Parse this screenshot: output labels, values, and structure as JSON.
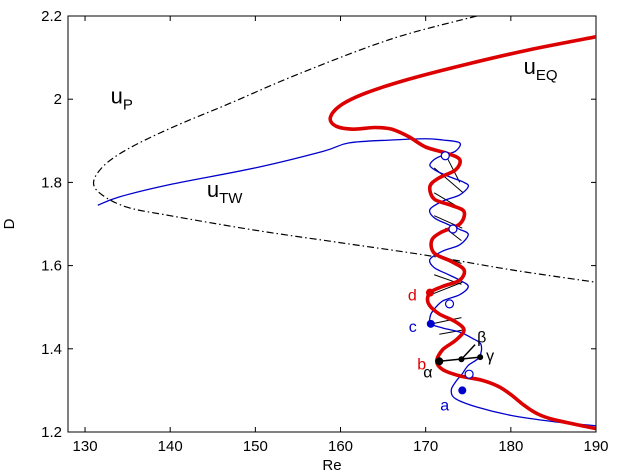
{
  "chart_data": {
    "type": "line",
    "xlabel": "Re",
    "ylabel": "D",
    "xlim": [
      128,
      190
    ],
    "ylim": [
      1.2,
      2.2
    ],
    "x_ticks": [
      130,
      140,
      150,
      160,
      170,
      180,
      190
    ],
    "x_tick_labels": [
      "130",
      "140",
      "150",
      "160",
      "170",
      "180",
      "190"
    ],
    "y_ticks": [
      1.2,
      1.4,
      1.6,
      1.8,
      2.0,
      2.2
    ],
    "y_tick_labels": [
      "1.2",
      "1.4",
      "1.6",
      "1.8",
      "2",
      "2.2"
    ],
    "grid": false,
    "series": [
      {
        "name": "u_P",
        "style": "dash-dot",
        "color": "#000000",
        "points": [
          [
            176,
            2.2
          ],
          [
            166,
            2.145
          ],
          [
            155,
            2.06
          ],
          [
            147,
            1.99
          ],
          [
            140,
            1.93
          ],
          [
            135,
            1.88
          ],
          [
            132.2,
            1.84
          ],
          [
            131,
            1.8
          ],
          [
            132,
            1.77
          ],
          [
            135,
            1.74
          ],
          [
            140,
            1.72
          ],
          [
            150,
            1.685
          ],
          [
            160,
            1.655
          ],
          [
            170,
            1.625
          ],
          [
            180,
            1.59
          ],
          [
            190,
            1.56
          ]
        ]
      },
      {
        "name": "u_TW",
        "style": "solid",
        "color": "#0000cc",
        "points": [
          [
            131.5,
            1.745
          ],
          [
            134,
            1.765
          ],
          [
            140,
            1.795
          ],
          [
            150,
            1.835
          ],
          [
            158,
            1.875
          ],
          [
            161,
            1.895
          ],
          [
            166,
            1.902
          ],
          [
            170,
            1.905
          ],
          [
            172,
            1.902
          ],
          [
            174,
            1.895
          ],
          [
            173.5,
            1.875
          ],
          [
            172,
            1.865
          ],
          [
            171,
            1.855
          ],
          [
            170.5,
            1.84
          ],
          [
            171.5,
            1.825
          ],
          [
            173,
            1.812
          ],
          [
            174.5,
            1.8
          ],
          [
            175,
            1.79
          ],
          [
            174,
            1.77
          ],
          [
            172,
            1.755
          ],
          [
            170.5,
            1.735
          ],
          [
            171,
            1.715
          ],
          [
            172.5,
            1.7
          ],
          [
            174,
            1.687
          ],
          [
            175,
            1.675
          ],
          [
            174,
            1.65
          ],
          [
            172,
            1.635
          ],
          [
            170.5,
            1.615
          ],
          [
            171,
            1.595
          ],
          [
            172.5,
            1.58
          ],
          [
            174,
            1.565
          ],
          [
            175,
            1.55
          ],
          [
            174,
            1.53
          ],
          [
            172,
            1.515
          ],
          [
            170.8,
            1.49
          ],
          [
            170.5,
            1.475
          ],
          [
            170.6,
            1.46
          ],
          [
            172,
            1.45
          ],
          [
            174,
            1.44
          ],
          [
            175.5,
            1.425
          ],
          [
            176.5,
            1.41
          ],
          [
            176.3,
            1.38
          ],
          [
            175,
            1.36
          ],
          [
            174.3,
            1.34
          ],
          [
            173.5,
            1.32
          ],
          [
            173,
            1.3
          ],
          [
            173.5,
            1.28
          ],
          [
            176,
            1.26
          ],
          [
            180,
            1.24
          ],
          [
            185,
            1.225
          ],
          [
            190,
            1.215
          ]
        ]
      },
      {
        "name": "u_EQ",
        "style": "solid-thick",
        "color": "#dd0000",
        "points": [
          [
            190,
            2.15
          ],
          [
            182,
            2.118
          ],
          [
            175,
            2.085
          ],
          [
            168,
            2.048
          ],
          [
            163,
            2.015
          ],
          [
            160,
            1.985
          ],
          [
            158.8,
            1.955
          ],
          [
            159.5,
            1.935
          ],
          [
            161.5,
            1.928
          ],
          [
            164,
            1.932
          ],
          [
            166,
            1.928
          ],
          [
            168,
            1.91
          ],
          [
            170,
            1.885
          ],
          [
            172.5,
            1.87
          ],
          [
            174,
            1.855
          ],
          [
            173.5,
            1.83
          ],
          [
            171.5,
            1.81
          ],
          [
            170.5,
            1.79
          ],
          [
            171,
            1.76
          ],
          [
            173,
            1.745
          ],
          [
            174.5,
            1.73
          ],
          [
            174,
            1.7
          ],
          [
            171.8,
            1.68
          ],
          [
            170.7,
            1.66
          ],
          [
            171,
            1.63
          ],
          [
            173,
            1.61
          ],
          [
            174.5,
            1.59
          ],
          [
            174,
            1.565
          ],
          [
            172,
            1.55
          ],
          [
            170.5,
            1.535
          ],
          [
            170.3,
            1.51
          ],
          [
            171.5,
            1.485
          ],
          [
            173.5,
            1.465
          ],
          [
            174.5,
            1.445
          ],
          [
            173.5,
            1.42
          ],
          [
            172,
            1.398
          ],
          [
            171.3,
            1.37
          ],
          [
            172,
            1.35
          ],
          [
            174,
            1.335
          ],
          [
            176.5,
            1.325
          ],
          [
            178.5,
            1.31
          ],
          [
            180,
            1.29
          ],
          [
            181.5,
            1.265
          ],
          [
            183,
            1.245
          ],
          [
            185,
            1.23
          ],
          [
            190,
            1.208
          ]
        ]
      }
    ],
    "rungs": [
      [
        [
          172.5,
          1.86
        ],
        [
          174,
          1.8
        ]
      ],
      [
        [
          171,
          1.835
        ],
        [
          174.4,
          1.775
        ]
      ],
      [
        [
          171,
          1.775
        ],
        [
          174.3,
          1.735
        ]
      ],
      [
        [
          171,
          1.72
        ],
        [
          174.3,
          1.69
        ]
      ],
      [
        [
          172.3,
          1.69
        ],
        [
          174.2,
          1.66
        ]
      ],
      [
        [
          171,
          1.63
        ],
        [
          174.2,
          1.605
        ]
      ],
      [
        [
          171,
          1.578
        ],
        [
          174.2,
          1.555
        ]
      ],
      [
        [
          170.6,
          1.53
        ],
        [
          174.3,
          1.56
        ]
      ],
      [
        [
          170.7,
          1.46
        ],
        [
          174.2,
          1.475
        ]
      ],
      [
        [
          171.6,
          1.435
        ],
        [
          174.3,
          1.445
        ]
      ]
    ],
    "open_markers": [
      [
        172.3,
        1.864
      ],
      [
        173.2,
        1.688
      ],
      [
        172.8,
        1.508
      ],
      [
        175.1,
        1.339
      ]
    ],
    "highlighted_points": [
      {
        "label": "d",
        "x": 170.5,
        "y": 1.535,
        "color": "#dd0000"
      },
      {
        "label": "c",
        "x": 170.6,
        "y": 1.46,
        "color": "#0000cc"
      },
      {
        "label": "b",
        "x": 171.6,
        "y": 1.37,
        "color": "#dd0000"
      },
      {
        "label": "a",
        "x": 174.3,
        "y": 1.3,
        "color": "#0000cc"
      }
    ],
    "triangle": {
      "alpha": {
        "label": "α",
        "x": 171.6,
        "y": 1.37
      },
      "beta": {
        "label": "β",
        "x": 175.8,
        "y": 1.41
      },
      "gamma": {
        "label": "γ",
        "x": 176.4,
        "y": 1.38
      },
      "mid": {
        "x": 174.2,
        "y": 1.375
      }
    },
    "annotations": [
      {
        "base": "u",
        "sub": "P",
        "x": 133,
        "y": 1.99
      },
      {
        "base": "u",
        "sub": "TW",
        "x": 144.3,
        "y": 1.765
      },
      {
        "base": "u",
        "sub": "EQ",
        "x": 181.5,
        "y": 2.06
      }
    ]
  }
}
